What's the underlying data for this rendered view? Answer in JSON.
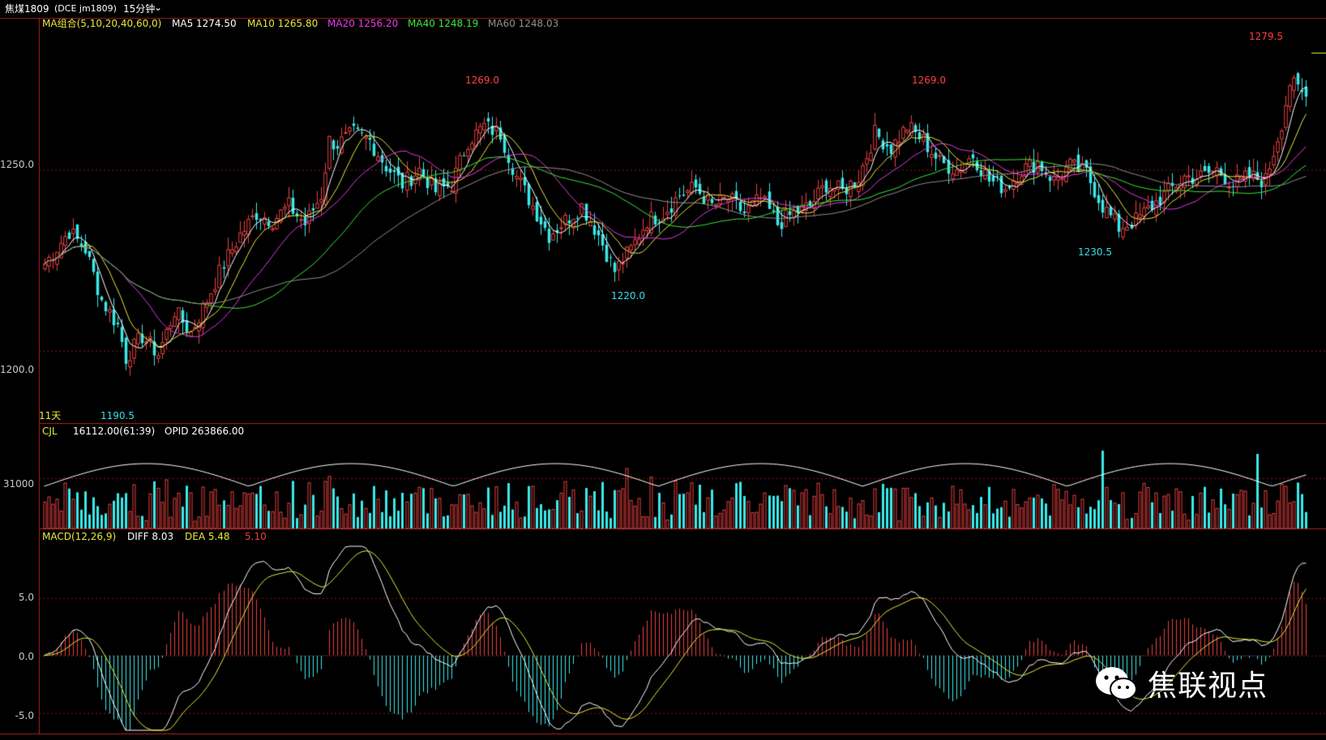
{
  "header": {
    "symbol": "焦煤1809",
    "exchange": "(DCE  jm1809)",
    "period": "15分钟",
    "period_dropdown": "⌄"
  },
  "ma_legend": {
    "title": "MA组合(5,10,20,40,60,0)",
    "items": [
      {
        "label": "MA5 1274.50",
        "color": "#ffffff"
      },
      {
        "label": "MA10 1265.80",
        "color": "#e8e83a"
      },
      {
        "label": "MA20 1256.20",
        "color": "#e83ae8"
      },
      {
        "label": "MA40 1248.19",
        "color": "#3ae83a"
      },
      {
        "label": "MA60 1248.03",
        "color": "#909090"
      }
    ]
  },
  "vol_legend": {
    "title": "CJL",
    "value": "16112.00(61:39)",
    "opid": "OPID 263866.00"
  },
  "macd_legend": {
    "title": "MACD(12,26,9)",
    "diff": "DIFF 8.03",
    "dea": "DEA 5.48",
    "macd": "5.10"
  },
  "axis": {
    "price_ticks": [
      "1250.0",
      "1200.0"
    ],
    "vol_ticks": [
      "31000"
    ],
    "macd_ticks": [
      "5.0",
      "0.0",
      "-5.0"
    ],
    "days_label": "11天"
  },
  "peaks": [
    {
      "label": "1269.0",
      "color": "#ff4040"
    },
    {
      "label": "1269.0",
      "color": "#ff4040"
    },
    {
      "label": "1279.5",
      "color": "#ff4040"
    },
    {
      "label": "1220.0",
      "color": "#3adfe8"
    },
    {
      "label": "1230.5",
      "color": "#3adfe8"
    },
    {
      "label": "1190.5",
      "color": "#3adfe8"
    }
  ],
  "watermark": {
    "text": "焦联视点",
    "icon": "wechat-icon"
  },
  "colors": {
    "up": "#e84040",
    "down": "#3ae8e8",
    "grid": "#8b1a1a"
  },
  "chart_data": {
    "type": "candlestick",
    "title": "焦煤1809 15分钟",
    "price_ylim": [
      1180,
      1292
    ],
    "ma_values_last": {
      "MA5": 1274.5,
      "MA10": 1265.8,
      "MA20": 1256.2,
      "MA40": 1248.19,
      "MA60": 1248.03
    },
    "price_marks": [
      {
        "label": "high",
        "value": 1269.0
      },
      {
        "label": "high",
        "value": 1269.0
      },
      {
        "label": "high",
        "value": 1279.5
      },
      {
        "label": "low",
        "value": 1220.0
      },
      {
        "label": "low",
        "value": 1230.5
      },
      {
        "label": "low",
        "value": 1190.5
      }
    ],
    "close_path": [
      [
        0,
        1224
      ],
      [
        6,
        1233
      ],
      [
        10,
        1228
      ],
      [
        14,
        1214
      ],
      [
        18,
        1207
      ],
      [
        20,
        1198
      ],
      [
        24,
        1204
      ],
      [
        28,
        1199
      ],
      [
        32,
        1211
      ],
      [
        36,
        1205
      ],
      [
        40,
        1214
      ],
      [
        44,
        1224
      ],
      [
        48,
        1232
      ],
      [
        52,
        1238
      ],
      [
        56,
        1236
      ],
      [
        60,
        1240
      ],
      [
        64,
        1235
      ],
      [
        68,
        1243
      ],
      [
        70,
        1258
      ],
      [
        72,
        1257
      ],
      [
        76,
        1260
      ],
      [
        80,
        1258
      ],
      [
        84,
        1251
      ],
      [
        88,
        1246
      ],
      [
        92,
        1250
      ],
      [
        96,
        1244
      ],
      [
        100,
        1246
      ],
      [
        104,
        1258
      ],
      [
        108,
        1262
      ],
      [
        112,
        1260
      ],
      [
        116,
        1248
      ],
      [
        120,
        1240
      ],
      [
        124,
        1232
      ],
      [
        128,
        1236
      ],
      [
        132,
        1240
      ],
      [
        136,
        1232
      ],
      [
        140,
        1222
      ],
      [
        144,
        1228
      ],
      [
        148,
        1236
      ],
      [
        152,
        1238
      ],
      [
        156,
        1243
      ],
      [
        160,
        1245
      ],
      [
        164,
        1240
      ],
      [
        168,
        1242
      ],
      [
        172,
        1238
      ],
      [
        176,
        1242
      ],
      [
        180,
        1235
      ],
      [
        184,
        1238
      ],
      [
        188,
        1240
      ],
      [
        192,
        1246
      ],
      [
        196,
        1244
      ],
      [
        200,
        1248
      ],
      [
        204,
        1260
      ],
      [
        208,
        1256
      ],
      [
        212,
        1262
      ],
      [
        216,
        1258
      ],
      [
        220,
        1252
      ],
      [
        224,
        1250
      ],
      [
        228,
        1254
      ],
      [
        232,
        1247
      ],
      [
        236,
        1245
      ],
      [
        240,
        1250
      ],
      [
        244,
        1252
      ],
      [
        248,
        1247
      ],
      [
        252,
        1251
      ],
      [
        256,
        1249
      ],
      [
        260,
        1240
      ],
      [
        264,
        1234
      ],
      [
        268,
        1236
      ],
      [
        272,
        1240
      ],
      [
        276,
        1244
      ],
      [
        280,
        1248
      ],
      [
        284,
        1248
      ],
      [
        288,
        1250
      ],
      [
        292,
        1246
      ],
      [
        296,
        1248
      ],
      [
        300,
        1247
      ],
      [
        304,
        1263
      ],
      [
        306,
        1274
      ],
      [
        310,
        1270
      ]
    ],
    "volume_ylim": [
      0,
      55000
    ],
    "macd_ylim": [
      -6.5,
      9.5
    ],
    "diff_last": 8.03,
    "dea_last": 5.48,
    "macd_last": 5.1
  }
}
